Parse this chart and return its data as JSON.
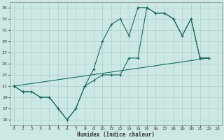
{
  "xlabel": "Humidex (Indice chaleur)",
  "bg_color": "#cce8e5",
  "line_color": "#1a6b5e",
  "grid_color": "#aacfcc",
  "xlim": [
    -0.5,
    23.5
  ],
  "ylim": [
    14,
    36
  ],
  "xticks": [
    0,
    1,
    2,
    3,
    4,
    5,
    6,
    7,
    8,
    9,
    10,
    11,
    12,
    13,
    14,
    15,
    16,
    17,
    18,
    19,
    20,
    21,
    22,
    23
  ],
  "yticks": [
    15,
    17,
    19,
    21,
    23,
    25,
    27,
    29,
    31,
    33,
    35
  ],
  "series": [
    {
      "x": [
        0,
        1,
        2,
        3,
        4,
        5,
        6,
        7,
        8,
        9,
        10,
        11,
        12,
        13,
        14,
        15,
        16,
        17,
        18,
        19,
        20,
        21,
        22
      ],
      "y": [
        21,
        20,
        20,
        19,
        19,
        17,
        15,
        17,
        21,
        24,
        29,
        32,
        33,
        30,
        35,
        35,
        34,
        34,
        33,
        30,
        33,
        26,
        26
      ]
    },
    {
      "x": [
        0,
        1,
        2,
        3,
        4,
        5,
        6,
        7,
        8,
        9,
        10,
        11,
        12,
        13,
        14,
        15,
        16,
        17,
        18,
        19,
        20,
        21,
        22
      ],
      "y": [
        21,
        20,
        20,
        19,
        19,
        17,
        15,
        17,
        21,
        22,
        23,
        23,
        23,
        26,
        26,
        35,
        34,
        34,
        33,
        30,
        33,
        26,
        26
      ]
    },
    {
      "x": [
        0,
        22
      ],
      "y": [
        21,
        26
      ]
    }
  ]
}
